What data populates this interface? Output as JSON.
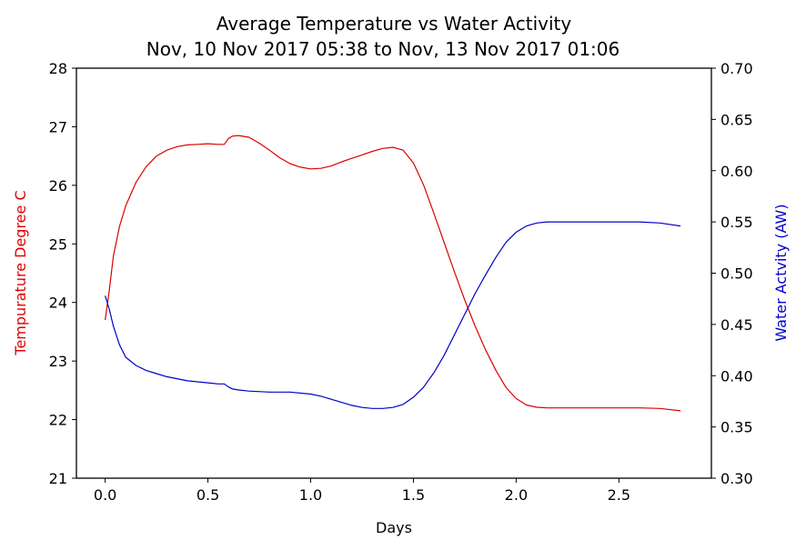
{
  "chart_data": {
    "type": "line",
    "title": "Average Temperature vs Water Activity",
    "subtitle": "Nov, 10 Nov 2017 05:38 to Nov, 13 Nov 2017 01:06",
    "xlabel": "Days",
    "ylabel_left": "Tempurature Degree C",
    "ylabel_right": "Water Actvity (AW)",
    "xlim": [
      -0.14,
      2.95
    ],
    "ylim_left": [
      21,
      28
    ],
    "ylim_right": [
      0.3,
      0.7
    ],
    "x_ticks": [
      0.0,
      0.5,
      1.0,
      1.5,
      2.0,
      2.5
    ],
    "x_tick_labels": [
      "0.0",
      "0.5",
      "1.0",
      "1.5",
      "2.0",
      "2.5"
    ],
    "y_left_ticks": [
      21,
      22,
      23,
      24,
      25,
      26,
      27,
      28
    ],
    "y_left_tick_labels": [
      "21",
      "22",
      "23",
      "24",
      "25",
      "26",
      "27",
      "28"
    ],
    "y_right_ticks": [
      0.3,
      0.35,
      0.4,
      0.45,
      0.5,
      0.55,
      0.6,
      0.65,
      0.7
    ],
    "y_right_tick_labels": [
      "0.30",
      "0.35",
      "0.40",
      "0.45",
      "0.50",
      "0.55",
      "0.60",
      "0.65",
      "0.70"
    ],
    "grid": false,
    "colors": {
      "temperature": "#dd0000",
      "water_activity": "#0000cc",
      "left_label": "#dd0000",
      "right_label": "#0000cc"
    },
    "series": [
      {
        "axis": "left",
        "color": "#dd0000",
        "x": [
          0.0,
          0.02,
          0.04,
          0.07,
          0.1,
          0.15,
          0.2,
          0.25,
          0.3,
          0.35,
          0.4,
          0.45,
          0.5,
          0.55,
          0.58,
          0.6,
          0.62,
          0.65,
          0.7,
          0.75,
          0.8,
          0.85,
          0.9,
          0.95,
          1.0,
          1.05,
          1.1,
          1.15,
          1.2,
          1.25,
          1.3,
          1.35,
          1.4,
          1.45,
          1.5,
          1.55,
          1.6,
          1.65,
          1.7,
          1.75,
          1.8,
          1.85,
          1.9,
          1.95,
          2.0,
          2.05,
          2.1,
          2.15,
          2.2,
          2.3,
          2.4,
          2.5,
          2.6,
          2.7,
          2.8
        ],
        "values": [
          23.7,
          24.2,
          24.8,
          25.3,
          25.65,
          26.05,
          26.32,
          26.5,
          26.6,
          26.66,
          26.69,
          26.7,
          26.71,
          26.7,
          26.7,
          26.8,
          26.84,
          26.85,
          26.82,
          26.72,
          26.6,
          26.47,
          26.37,
          26.31,
          26.28,
          26.29,
          26.33,
          26.4,
          26.46,
          26.52,
          26.58,
          26.63,
          26.65,
          26.6,
          26.38,
          26.0,
          25.52,
          25.02,
          24.52,
          24.04,
          23.6,
          23.2,
          22.85,
          22.55,
          22.36,
          22.25,
          22.21,
          22.2,
          22.2,
          22.2,
          22.2,
          22.2,
          22.2,
          22.19,
          22.15
        ]
      },
      {
        "axis": "right",
        "color": "#0000cc",
        "x": [
          0.0,
          0.02,
          0.04,
          0.07,
          0.1,
          0.15,
          0.2,
          0.25,
          0.3,
          0.4,
          0.5,
          0.55,
          0.58,
          0.6,
          0.62,
          0.65,
          0.7,
          0.8,
          0.9,
          1.0,
          1.05,
          1.1,
          1.15,
          1.2,
          1.25,
          1.3,
          1.35,
          1.4,
          1.45,
          1.5,
          1.55,
          1.6,
          1.65,
          1.7,
          1.75,
          1.8,
          1.85,
          1.9,
          1.95,
          2.0,
          2.05,
          2.1,
          2.15,
          2.2,
          2.3,
          2.4,
          2.5,
          2.6,
          2.7,
          2.8
        ],
        "values": [
          0.478,
          0.465,
          0.448,
          0.43,
          0.418,
          0.41,
          0.405,
          0.402,
          0.399,
          0.395,
          0.393,
          0.392,
          0.392,
          0.389,
          0.387,
          0.386,
          0.385,
          0.384,
          0.384,
          0.382,
          0.38,
          0.377,
          0.374,
          0.371,
          0.369,
          0.368,
          0.368,
          0.369,
          0.372,
          0.379,
          0.389,
          0.403,
          0.42,
          0.44,
          0.46,
          0.48,
          0.498,
          0.515,
          0.53,
          0.54,
          0.546,
          0.549,
          0.55,
          0.55,
          0.55,
          0.55,
          0.55,
          0.55,
          0.549,
          0.546
        ]
      }
    ]
  }
}
